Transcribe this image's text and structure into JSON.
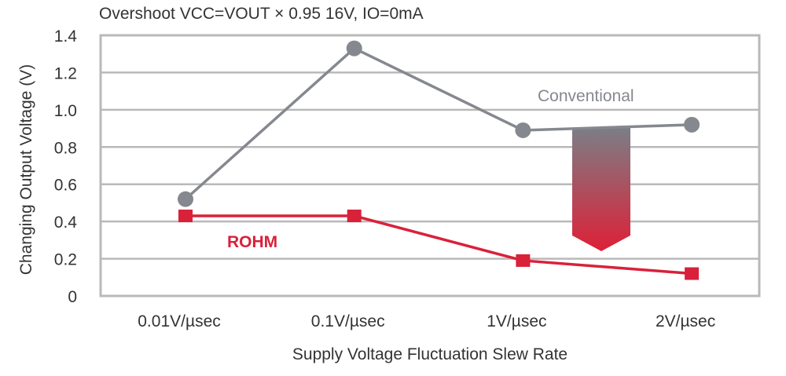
{
  "chart_data": {
    "type": "line",
    "title": "Overshoot VCC=VOUT × 0.95 16V, IO=0mA",
    "xlabel": "Supply Voltage Fluctuation Slew Rate",
    "ylabel": "Changing Output Voltage (V)",
    "categories": [
      "0.01V/µsec",
      "0.1V/µsec",
      "1V/µsec",
      "2V/µsec"
    ],
    "ylim": [
      0,
      1.4
    ],
    "yticks": [
      "0",
      "0.2",
      "0.4",
      "0.6",
      "0.8",
      "1.0",
      "1.2",
      "1.4"
    ],
    "grid": true,
    "series": [
      {
        "name": "Conventional",
        "values": [
          0.52,
          1.33,
          0.89,
          0.92
        ],
        "color": "#85888f",
        "marker": "circle"
      },
      {
        "name": "ROHM",
        "values": [
          0.43,
          0.43,
          0.19,
          0.12
        ],
        "color": "#d9213a",
        "marker": "square"
      }
    ],
    "annotations": [
      "downward arrow from Conventional to ROHM (gray-to-red gradient)"
    ]
  }
}
